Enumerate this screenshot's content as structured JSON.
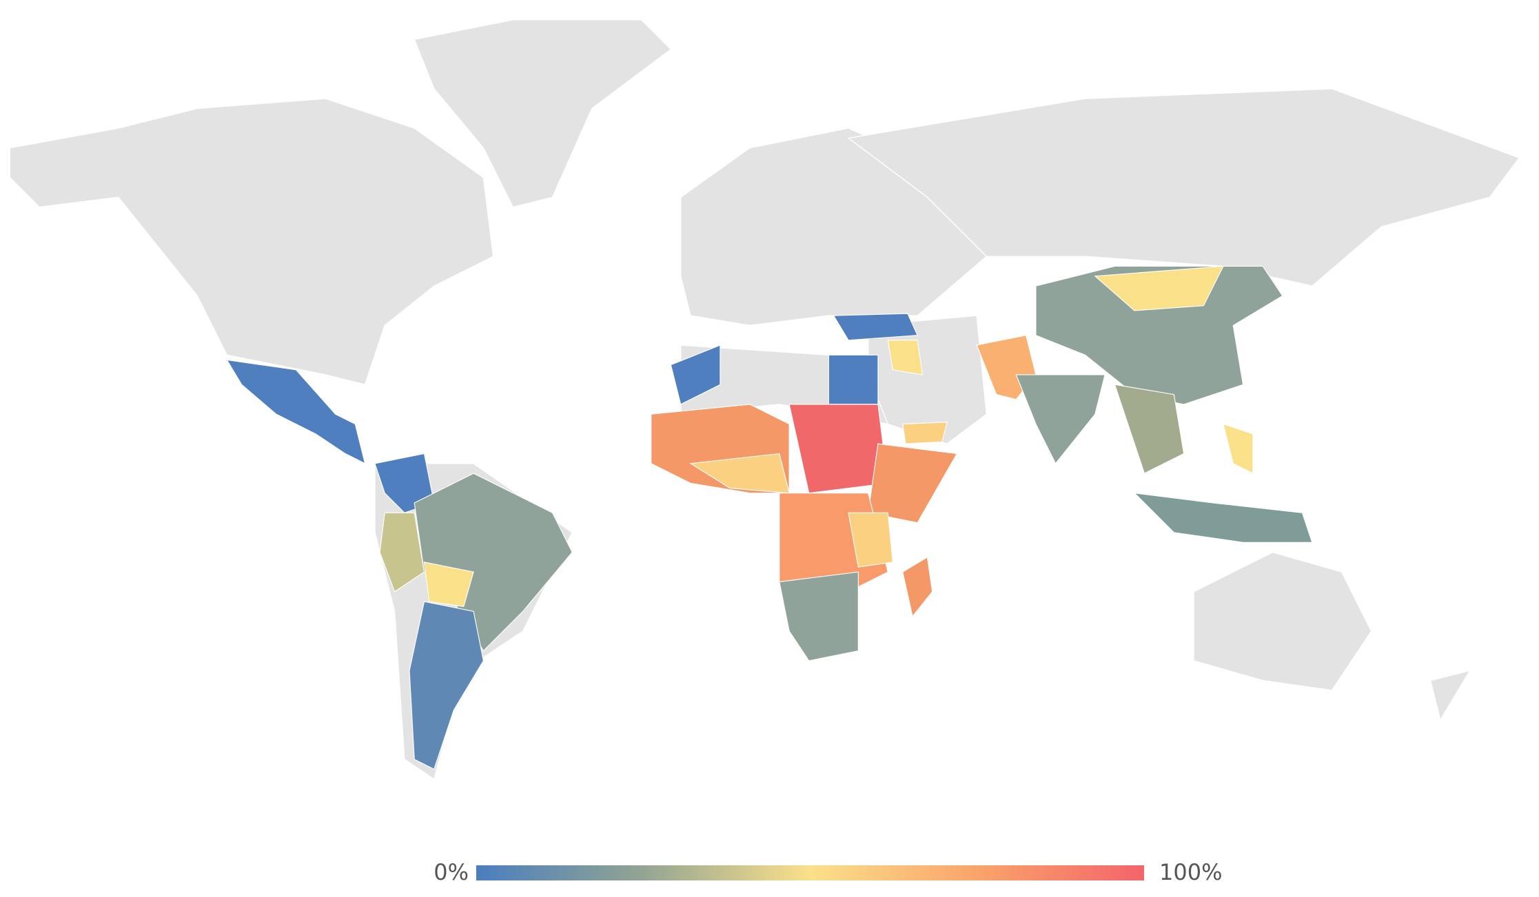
{
  "legend": {
    "min_label": "0%",
    "max_label": "100%",
    "gradient": [
      "#4a7ebf",
      "#93a592",
      "#fbe08a",
      "#f9a46a",
      "#f4646a"
    ]
  }
}
